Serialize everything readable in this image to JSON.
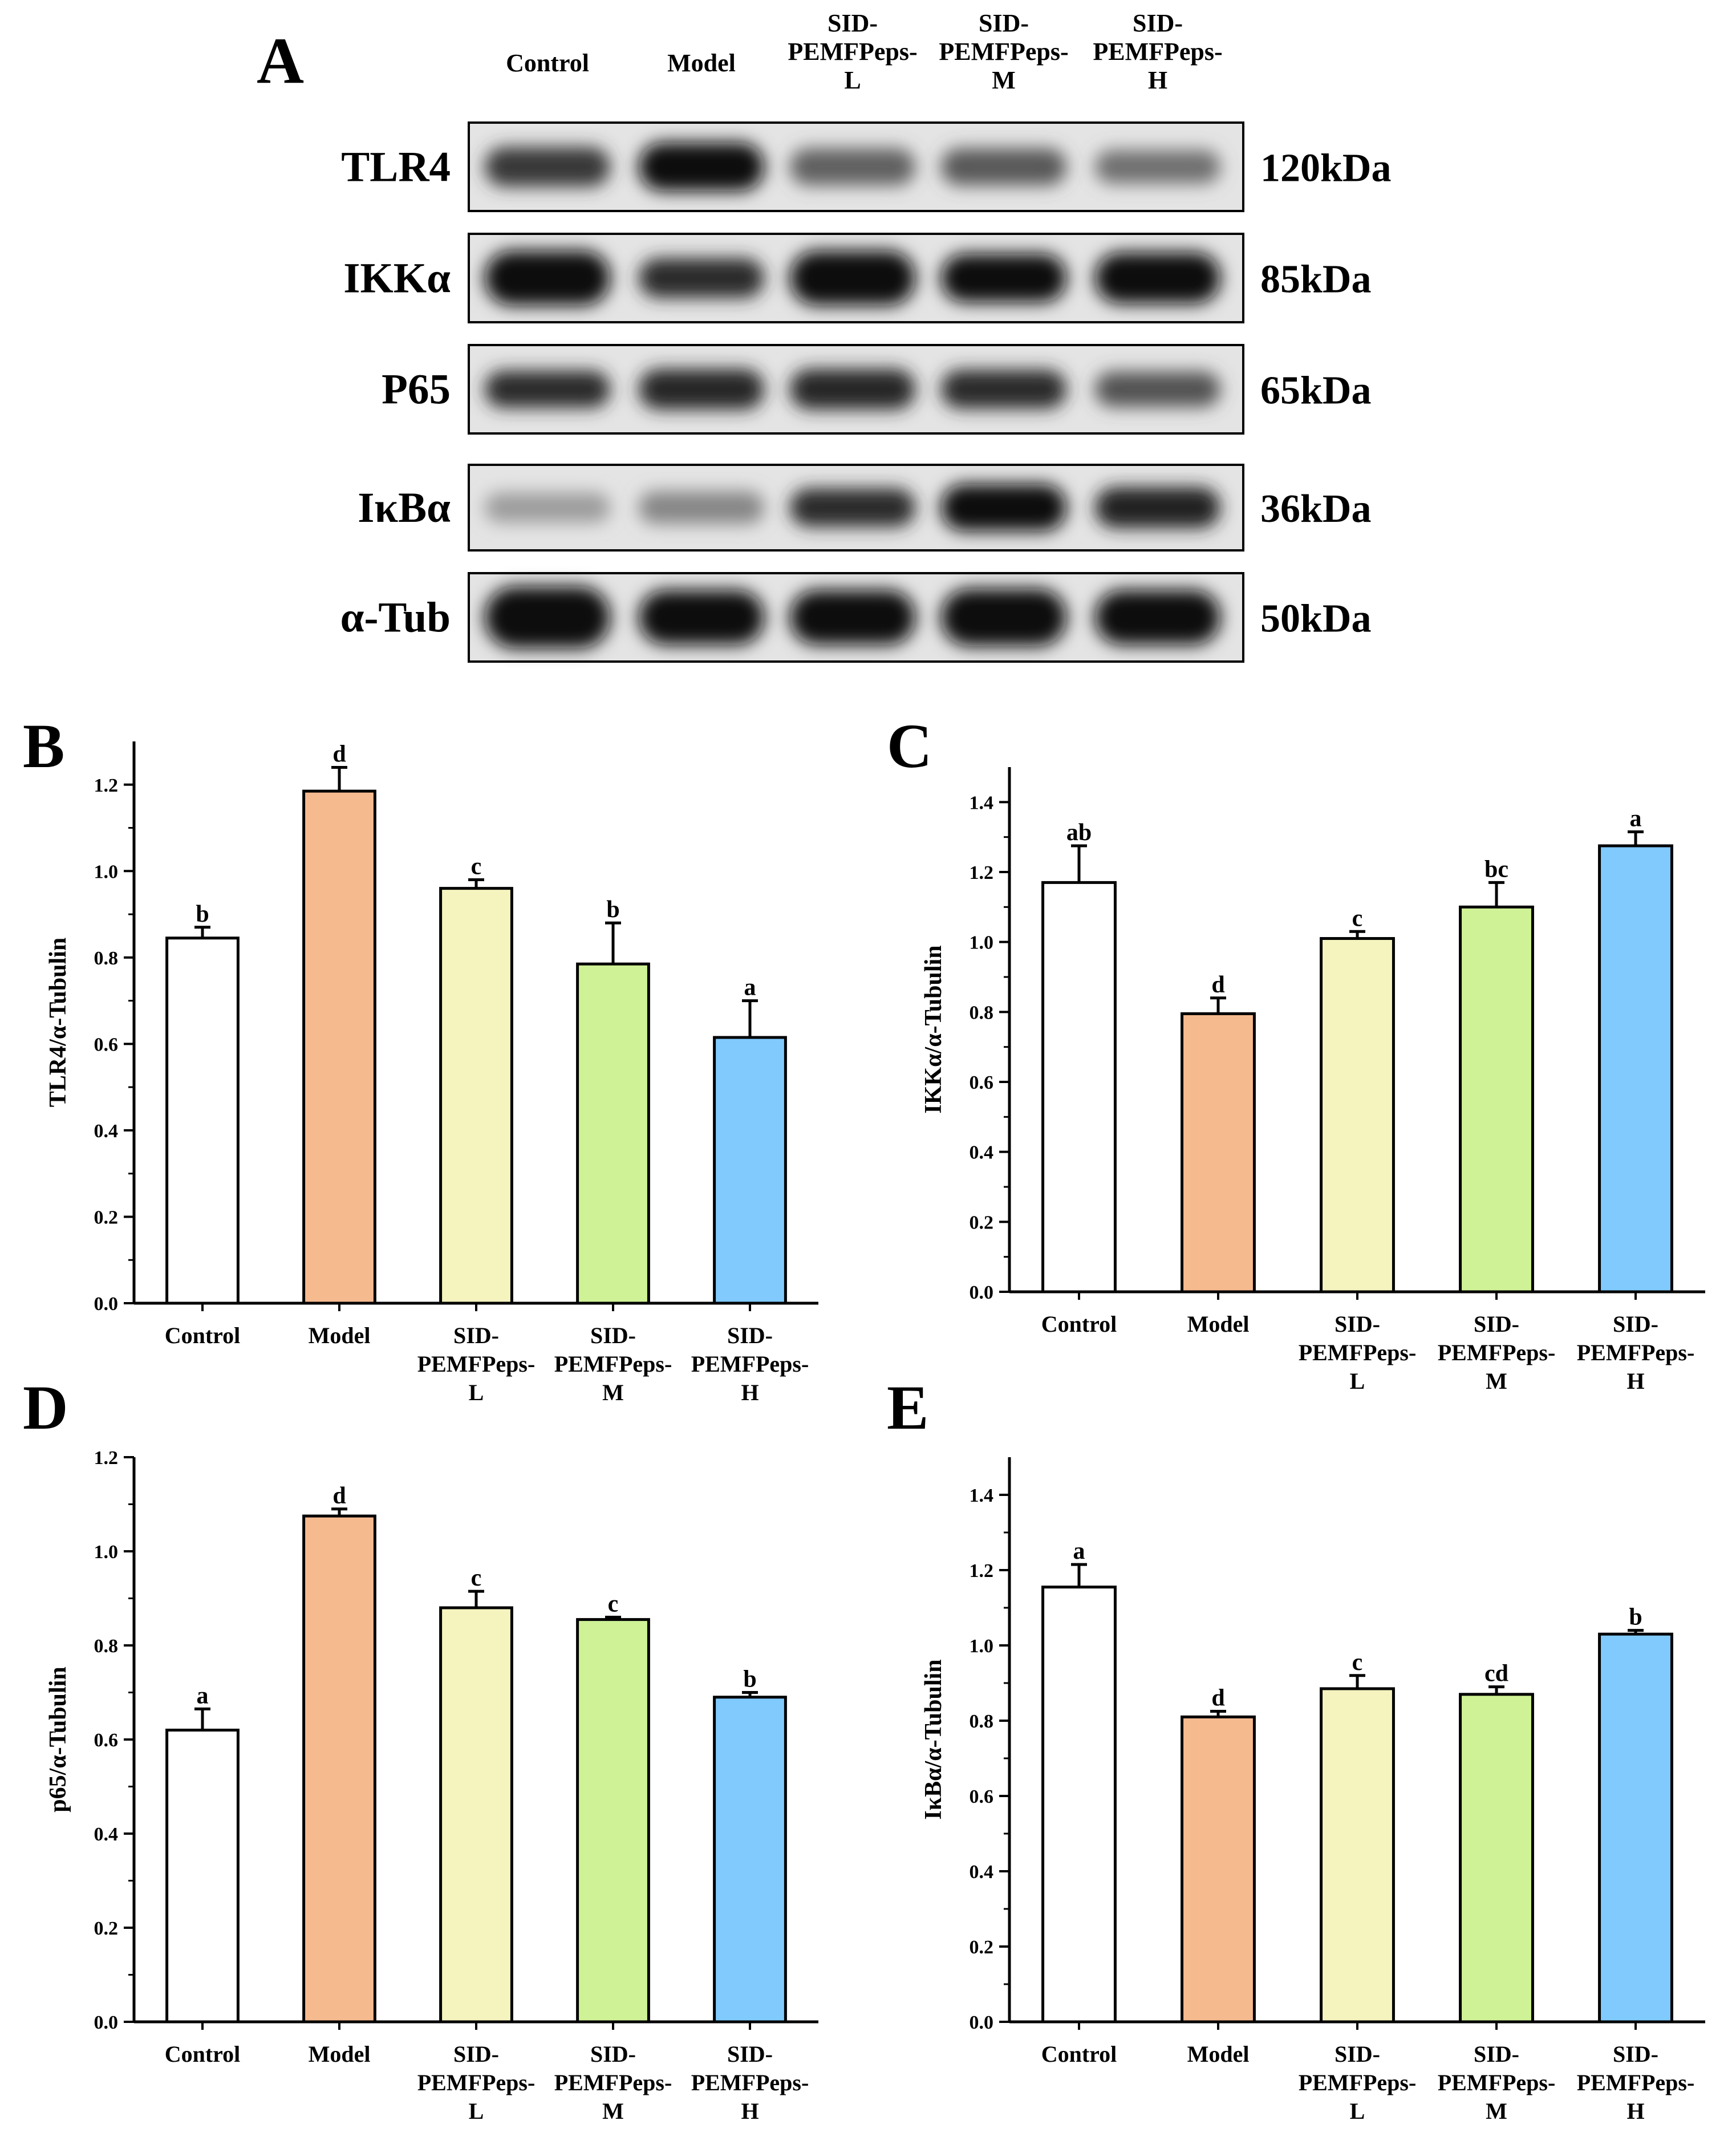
{
  "panel_a": {
    "letter": "A",
    "lanes": [
      {
        "lines": [
          "Control"
        ]
      },
      {
        "lines": [
          "Model"
        ]
      },
      {
        "lines": [
          "SID-",
          "PEMFPeps-",
          "L"
        ]
      },
      {
        "lines": [
          "SID-",
          "PEMFPeps-",
          "M"
        ]
      },
      {
        "lines": [
          "SID-",
          "PEMFPeps-",
          "H"
        ]
      }
    ],
    "blots": [
      {
        "protein": "TLR4",
        "size": "120kDa",
        "intensity": [
          0.8,
          1.0,
          0.62,
          0.65,
          0.55
        ],
        "thickness": [
          0.45,
          0.55,
          0.42,
          0.42,
          0.38
        ]
      },
      {
        "protein": "IKKα",
        "size": "85kDa",
        "intensity": [
          1.0,
          0.85,
          1.0,
          0.97,
          1.0
        ],
        "thickness": [
          0.62,
          0.45,
          0.62,
          0.55,
          0.58
        ]
      },
      {
        "protein": "P65",
        "size": "65kDa",
        "intensity": [
          0.85,
          0.88,
          0.88,
          0.85,
          0.68
        ],
        "thickness": [
          0.42,
          0.46,
          0.46,
          0.44,
          0.4
        ]
      },
      {
        "protein": "IκBα",
        "size": "36kDa",
        "intensity": [
          0.35,
          0.45,
          0.85,
          1.0,
          0.9
        ],
        "thickness": [
          0.35,
          0.38,
          0.45,
          0.55,
          0.48
        ]
      },
      {
        "protein": "α-Tub",
        "size": "50kDa",
        "intensity": [
          1.0,
          1.0,
          1.0,
          1.0,
          1.0
        ],
        "thickness": [
          0.7,
          0.62,
          0.62,
          0.65,
          0.62
        ]
      }
    ]
  },
  "chart_data": [
    {
      "panel": "B",
      "type": "bar",
      "ylabel": "TLR4/α-Tubulin",
      "categories": [
        [
          "Control"
        ],
        [
          "Model"
        ],
        [
          "SID-",
          "PEMFPeps-",
          "L"
        ],
        [
          "SID-",
          "PEMFPeps-",
          "M"
        ],
        [
          "SID-",
          "PEMFPeps-",
          "H"
        ]
      ],
      "values": [
        0.845,
        1.185,
        0.96,
        0.785,
        0.615
      ],
      "errors": [
        0.025,
        0.055,
        0.02,
        0.095,
        0.085
      ],
      "letters": [
        "b",
        "d",
        "c",
        "b",
        "a"
      ],
      "colors": [
        "#ffffff",
        "#f6ba8f",
        "#f5f4bf",
        "#cff297",
        "#80cafd"
      ],
      "ylim": [
        0,
        1.3
      ],
      "yticks": [
        "0.0",
        "0.2",
        "0.4",
        "0.6",
        "0.8",
        "1.0",
        "1.2"
      ]
    },
    {
      "panel": "C",
      "type": "bar",
      "ylabel": "IKKα/α-Tubulin",
      "categories": [
        [
          "Control"
        ],
        [
          "Model"
        ],
        [
          "SID-",
          "PEMFPeps-",
          "L"
        ],
        [
          "SID-",
          "PEMFPeps-",
          "M"
        ],
        [
          "SID-",
          "PEMFPeps-",
          "H"
        ]
      ],
      "values": [
        1.17,
        0.795,
        1.01,
        1.1,
        1.275
      ],
      "errors": [
        0.105,
        0.045,
        0.02,
        0.07,
        0.04
      ],
      "letters": [
        "ab",
        "d",
        "c",
        "bc",
        "a"
      ],
      "colors": [
        "#ffffff",
        "#f6ba8f",
        "#f5f4bf",
        "#cff297",
        "#80cafd"
      ],
      "ylim": [
        0,
        1.5
      ],
      "yticks": [
        "0.0",
        "0.2",
        "0.4",
        "0.6",
        "0.8",
        "1.0",
        "1.2",
        "1.4"
      ]
    },
    {
      "panel": "D",
      "type": "bar",
      "ylabel": "p65/α-Tubulin",
      "categories": [
        [
          "Control"
        ],
        [
          "Model"
        ],
        [
          "SID-",
          "PEMFPeps-",
          "L"
        ],
        [
          "SID-",
          "PEMFPeps-",
          "M"
        ],
        [
          "SID-",
          "PEMFPeps-",
          "H"
        ]
      ],
      "values": [
        0.62,
        1.075,
        0.88,
        0.855,
        0.69
      ],
      "errors": [
        0.045,
        0.015,
        0.035,
        0.005,
        0.01
      ],
      "letters": [
        "a",
        "d",
        "c",
        "c",
        "b"
      ],
      "colors": [
        "#ffffff",
        "#f6ba8f",
        "#f5f4bf",
        "#cff297",
        "#80cafd"
      ],
      "ylim": [
        0,
        1.2
      ],
      "yticks": [
        "0.0",
        "0.2",
        "0.4",
        "0.6",
        "0.8",
        "1.0",
        "1.2"
      ]
    },
    {
      "panel": "E",
      "type": "bar",
      "ylabel": "IκBα/α-Tubulin",
      "categories": [
        [
          "Control"
        ],
        [
          "Model"
        ],
        [
          "SID-",
          "PEMFPeps-",
          "L"
        ],
        [
          "SID-",
          "PEMFPeps-",
          "M"
        ],
        [
          "SID-",
          "PEMFPeps-",
          "H"
        ]
      ],
      "values": [
        1.155,
        0.81,
        0.885,
        0.87,
        1.03
      ],
      "errors": [
        0.06,
        0.015,
        0.035,
        0.02,
        0.01
      ],
      "letters": [
        "a",
        "d",
        "c",
        "cd",
        "b"
      ],
      "colors": [
        "#ffffff",
        "#f6ba8f",
        "#f5f4bf",
        "#cff297",
        "#80cafd"
      ],
      "ylim": [
        0,
        1.5
      ],
      "yticks": [
        "0.0",
        "0.2",
        "0.4",
        "0.6",
        "0.8",
        "1.0",
        "1.2",
        "1.4"
      ]
    }
  ]
}
